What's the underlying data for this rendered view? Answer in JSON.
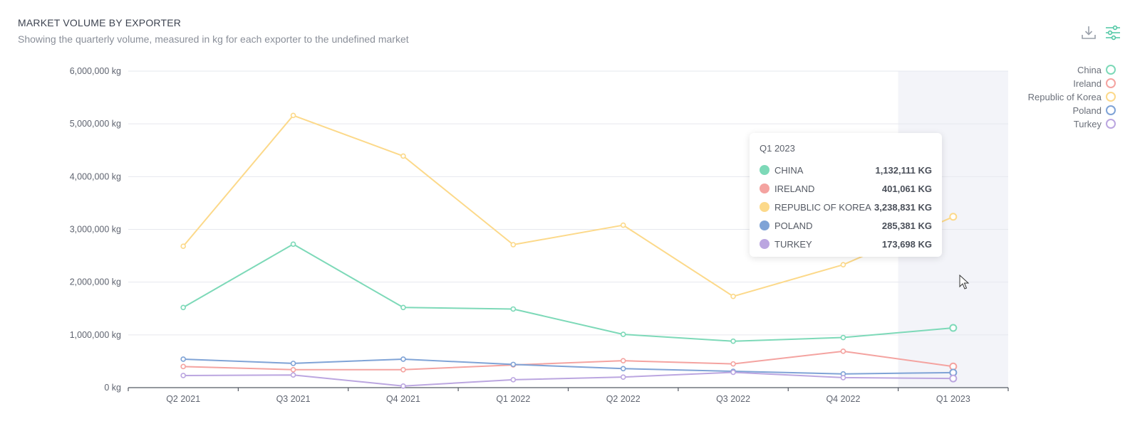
{
  "header": {
    "title": "MARKET VOLUME BY EXPORTER",
    "subtitle": "Showing the quarterly volume, measured in kg for each exporter to the undefined market"
  },
  "toolbar": {
    "download_icon": "download-icon",
    "settings_icon": "sliders-icon"
  },
  "chart_data": {
    "type": "line",
    "title": "MARKET VOLUME BY EXPORTER",
    "subtitle": "Showing the quarterly volume, measured in kg for each exporter to the undefined market",
    "xlabel": "",
    "ylabel": "",
    "categories": [
      "Q2 2021",
      "Q3 2021",
      "Q4 2021",
      "Q1 2022",
      "Q2 2022",
      "Q3 2022",
      "Q4 2022",
      "Q1 2023"
    ],
    "y_ticks": [
      "0 kg",
      "1,000,000 kg",
      "2,000,000 kg",
      "3,000,000 kg",
      "4,000,000 kg",
      "5,000,000 kg",
      "6,000,000 kg"
    ],
    "ylim": [
      0,
      6000000
    ],
    "grid": true,
    "legend_position": "top-right",
    "highlighted_category": "Q1 2023",
    "series": [
      {
        "name": "China",
        "color": "#7dd9b8",
        "values": [
          1520000,
          2720000,
          1520000,
          1490000,
          1010000,
          880000,
          950000,
          1132111
        ]
      },
      {
        "name": "Ireland",
        "color": "#f4a3a0",
        "values": [
          400000,
          340000,
          340000,
          430000,
          510000,
          450000,
          690000,
          401061
        ]
      },
      {
        "name": "Republic of Korea",
        "color": "#fcd98a",
        "values": [
          2680000,
          5160000,
          4390000,
          2710000,
          3080000,
          1730000,
          2330000,
          3238831
        ]
      },
      {
        "name": "Poland",
        "color": "#7fa3d6",
        "values": [
          540000,
          460000,
          540000,
          440000,
          360000,
          310000,
          260000,
          285381
        ]
      },
      {
        "name": "Turkey",
        "color": "#bba6e0",
        "values": [
          230000,
          240000,
          30000,
          150000,
          200000,
          290000,
          190000,
          173698
        ]
      }
    ]
  },
  "tooltip": {
    "title": "Q1 2023",
    "rows": [
      {
        "name": "China",
        "value": "1,132,111 KG",
        "color": "#7dd9b8"
      },
      {
        "name": "Ireland",
        "value": "401,061 KG",
        "color": "#f4a3a0"
      },
      {
        "name": "Republic of Korea",
        "value": "3,238,831 KG",
        "color": "#fcd98a"
      },
      {
        "name": "Poland",
        "value": "285,381 KG",
        "color": "#7fa3d6"
      },
      {
        "name": "Turkey",
        "value": "173,698 KG",
        "color": "#bba6e0"
      }
    ]
  }
}
